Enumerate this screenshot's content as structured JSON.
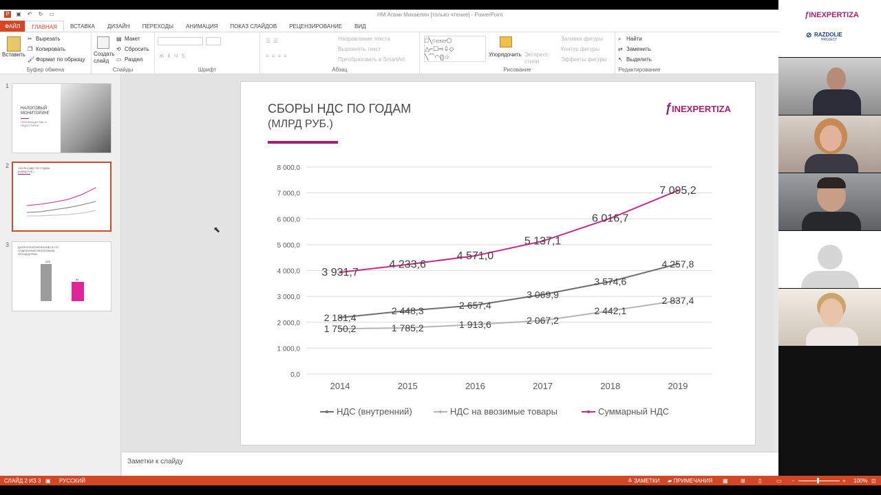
{
  "window": {
    "title": "НМ Агван Михаелян [только чтение] - PowerPoint"
  },
  "tabs": [
    {
      "label": "ФАЙЛ"
    },
    {
      "label": "ГЛАВНАЯ"
    },
    {
      "label": "ВСТАВКА"
    },
    {
      "label": "ДИЗАЙН"
    },
    {
      "label": "ПЕРЕХОДЫ"
    },
    {
      "label": "АНИМАЦИЯ"
    },
    {
      "label": "ПОКАЗ СЛАЙДОВ"
    },
    {
      "label": "РЕЦЕНЗИРОВАНИЕ"
    },
    {
      "label": "ВИД"
    }
  ],
  "ribbon": {
    "clipboard": {
      "paste": "Вставить",
      "cut": "Вырезать",
      "copy": "Копировать",
      "format_painter": "Формат по образцу",
      "label": "Буфер обмена"
    },
    "slides": {
      "new_slide": "Создать слайд",
      "layout": "Макет",
      "reset": "Сбросить",
      "section": "Раздел",
      "label": "Слайды"
    },
    "font": {
      "label": "Шрифт"
    },
    "paragraph": {
      "text_direction": "Направление текста",
      "align_text": "Выровнять текст",
      "smartart": "Преобразовать в SmartArt",
      "label": "Абзац"
    },
    "drawing": {
      "arrange": "Упорядочить",
      "quick_styles": "Экспресс-стили",
      "fill": "Заливка фигуры",
      "outline": "Контур фигуры",
      "effects": "Эффекты фигуры",
      "label": "Рисование"
    },
    "editing": {
      "find": "Найти",
      "replace": "Заменить",
      "select": "Выделить",
      "label": "Редактирование"
    }
  },
  "thumbnails": [
    {
      "num": "1",
      "title": "НАЛОГОВЫЙ МОНИТОРИНГ",
      "subtitle": "ПРЕИМУЩЕСТВА И НЕДОСТАТКИ"
    },
    {
      "num": "2",
      "title": "СБОРЫ НДС ПО ГОДАМ",
      "subtitle": "(МЛРД РУБ.)"
    },
    {
      "num": "3",
      "title": "ДОЛЯ ИЗЪЯТИЯ БИЗНЕСА ПО ОТДЕЛЬНЫМ НАЛОГОВЫМ ПРОЦЕДУРАМ",
      "bar1": "126",
      "bar2": "84"
    }
  ],
  "slide": {
    "title": "СБОРЫ НДС ПО ГОДАМ",
    "subtitle": "(МЛРД РУБ.)",
    "logo": "INEXPERTIZA",
    "accent": "#a31f6f"
  },
  "chart_data": {
    "type": "line",
    "title": "",
    "x": [
      "2014",
      "2015",
      "2016",
      "2017",
      "2018",
      "2019"
    ],
    "ylim": [
      0,
      8000
    ],
    "yticks": [
      "0,0",
      "1 000,0",
      "2 000,0",
      "3 000,0",
      "4 000,0",
      "5 000,0",
      "6 000,0",
      "7 000,0",
      "8 000,0"
    ],
    "grid": true,
    "legend": "bottom",
    "series": [
      {
        "name": "НДС (внутренний)",
        "color": "#6d6d6d",
        "values": [
          2181.4,
          2448.3,
          2657.4,
          3069.9,
          3574.6,
          4257.8
        ],
        "labels": [
          "2 181,4",
          "2 448,3",
          "2 657,4",
          "3 069,9",
          "3 574,6",
          "4 257,8"
        ]
      },
      {
        "name": "НДС на ввозимые товары",
        "color": "#b4b4b4",
        "values": [
          1750.2,
          1785.2,
          1913.6,
          2067.2,
          2442.1,
          2837.4
        ],
        "labels": [
          "1 750,2",
          "1 785,2",
          "1 913,6",
          "2 067,2",
          "2 442,1",
          "2 837,4"
        ]
      },
      {
        "name": "Суммарный НДС",
        "color": "#c8288a",
        "values": [
          3931.7,
          4233.6,
          4571.0,
          5137.1,
          6016.7,
          7095.2
        ],
        "labels": [
          "3 931,7",
          "4 233,6",
          "4 571,0",
          "5 137,1",
          "6 016,7",
          "7 095,2"
        ]
      }
    ]
  },
  "notes": {
    "placeholder": "Заметки к слайду"
  },
  "status": {
    "slide": "СЛАЙД 2 ИЗ 3",
    "lang": "РУССКИЙ",
    "notes": "ЗАМЕТКИ",
    "comments": "ПРИМЕЧАНИЯ",
    "zoom": "100%"
  },
  "video": {
    "logo1": "INEXPERTIZA",
    "logo2": "RAZDOLIE",
    "logo2_sub": "PROJECT"
  }
}
